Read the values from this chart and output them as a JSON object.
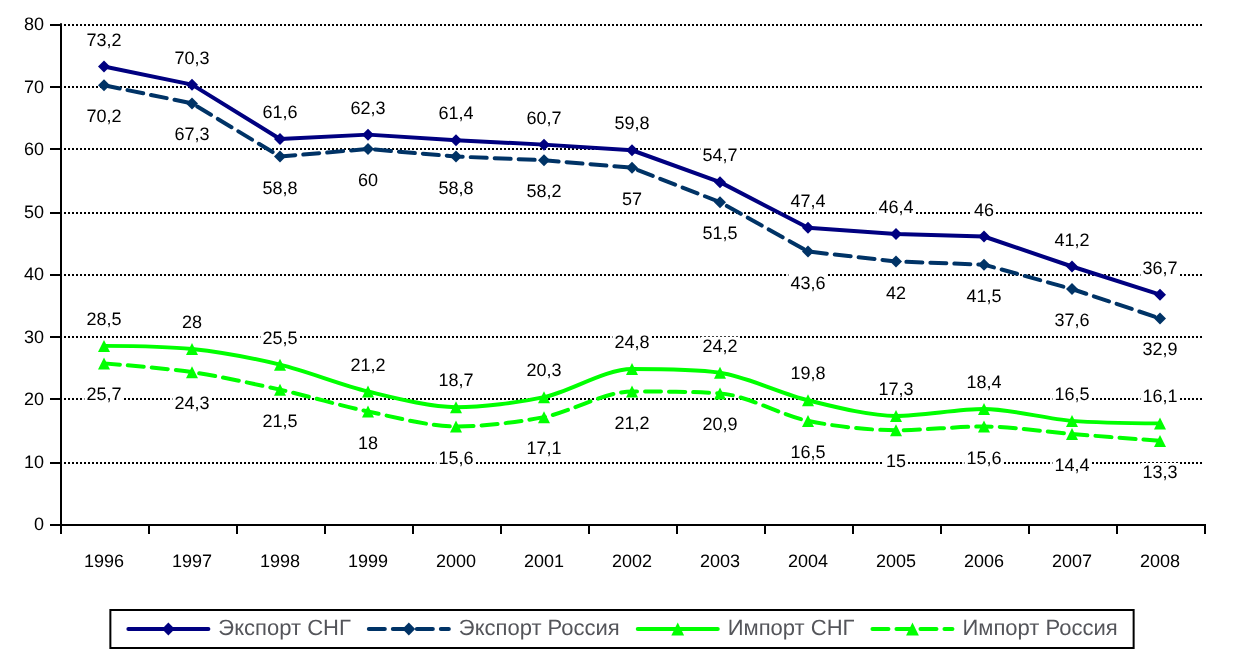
{
  "chart_data": {
    "type": "line",
    "categories": [
      "1996",
      "1997",
      "1998",
      "1999",
      "2000",
      "2001",
      "2002",
      "2003",
      "2004",
      "2005",
      "2006",
      "2007",
      "2008"
    ],
    "series": [
      {
        "name": "Экспорт СНГ",
        "color": "#000080",
        "marker": "diamond",
        "line_style": "solid",
        "values": [
          73.2,
          70.3,
          61.6,
          62.3,
          61.4,
          60.7,
          59.8,
          54.7,
          47.4,
          46.4,
          46,
          41.2,
          36.7
        ],
        "value_labels": [
          "73,2",
          "70,3",
          "61,6",
          "62,3",
          "61,4",
          "60,7",
          "59,8",
          "54,7",
          "47,4",
          "46,4",
          "46",
          "41,2",
          "36,7"
        ]
      },
      {
        "name": "Экспорт Россия",
        "color": "#003366",
        "marker": "diamond",
        "line_style": "dashed",
        "values": [
          70.2,
          67.3,
          58.8,
          60,
          58.8,
          58.2,
          57,
          51.5,
          43.6,
          42,
          41.5,
          37.6,
          32.9
        ],
        "value_labels": [
          "70,2",
          "67,3",
          "58,8",
          "60",
          "58,8",
          "58,2",
          "57",
          "51,5",
          "43,6",
          "42",
          "41,5",
          "37,6",
          "32,9"
        ]
      },
      {
        "name": "Импорт СНГ",
        "color": "#00ff00",
        "marker": "triangle",
        "line_style": "solid",
        "values": [
          28.5,
          28,
          25.5,
          21.2,
          18.7,
          20.3,
          24.8,
          24.2,
          19.8,
          17.3,
          18.4,
          16.5,
          16.1
        ],
        "value_labels": [
          "28,5",
          "28",
          "25,5",
          "21,2",
          "18,7",
          "20,3",
          "24,8",
          "24,2",
          "19,8",
          "17,3",
          "18,4",
          "16,5",
          "16,1"
        ]
      },
      {
        "name": "Импорт Россия",
        "color": "#00ff00",
        "marker": "triangle",
        "line_style": "dashed",
        "values": [
          25.7,
          24.3,
          21.5,
          18,
          15.6,
          17.1,
          21.2,
          20.9,
          16.5,
          15,
          15.6,
          14.4,
          13.3
        ],
        "value_labels": [
          "25,7",
          "24,3",
          "21,5",
          "18",
          "15,6",
          "17,1",
          "21,2",
          "20,9",
          "16,5",
          "15",
          "15,6",
          "14,4",
          "13,3"
        ]
      }
    ],
    "ylim": [
      0,
      80
    ],
    "yticks": [
      0,
      10,
      20,
      30,
      40,
      50,
      60,
      70,
      80
    ],
    "grid": "y",
    "legend": "bottom"
  }
}
